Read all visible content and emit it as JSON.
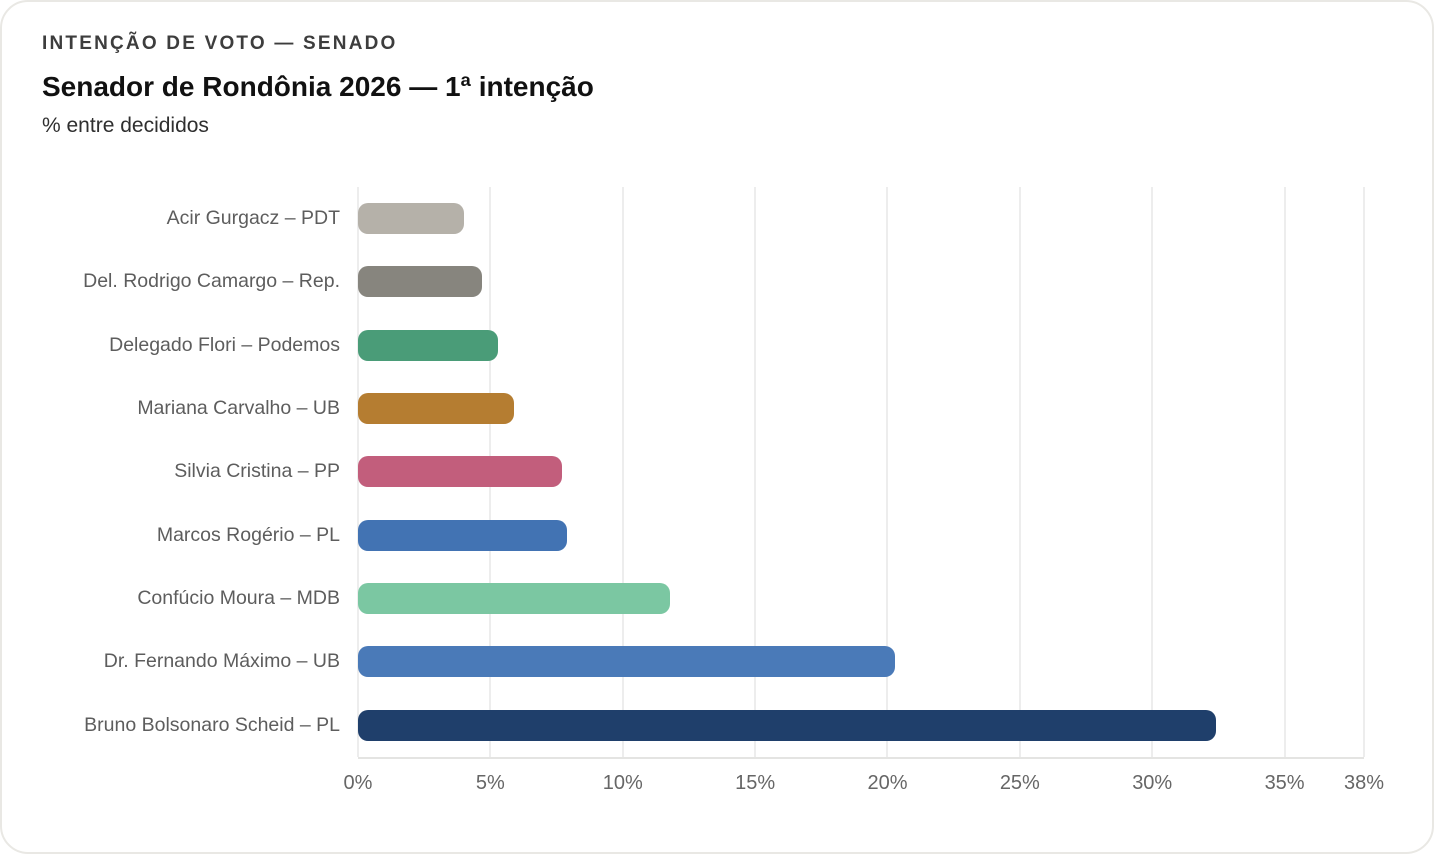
{
  "header": {
    "eyebrow": "INTENÇÃO DE VOTO — SENADO",
    "title": "Senador de Rondônia 2026 — 1ª intenção",
    "subtitle": "% entre decididos"
  },
  "chart_data": {
    "type": "bar",
    "orientation": "horizontal",
    "title": "Senador de Rondônia 2026 — 1ª intenção",
    "subtitle": "% entre decididos",
    "xlabel": "",
    "ylabel": "",
    "xlim": [
      0,
      38
    ],
    "grid": true,
    "categories": [
      "Acir Gurgacz – PDT",
      "Del. Rodrigo Camargo – Rep.",
      "Delegado Flori – Podemos",
      "Mariana Carvalho – UB",
      "Silvia Cristina – PP",
      "Marcos Rogério – PL",
      "Confúcio Moura – MDB",
      "Dr. Fernando Máximo – UB",
      "Bruno Bolsonaro Scheid – PL"
    ],
    "values": [
      4.0,
      4.7,
      5.3,
      5.9,
      7.7,
      7.9,
      11.8,
      20.3,
      32.4
    ],
    "colors": [
      "#b5b1a9",
      "#87857e",
      "#4a9c78",
      "#b57d31",
      "#c25e7c",
      "#4273b3",
      "#7bc7a2",
      "#4a7ab8",
      "#1f3f6b"
    ],
    "x_ticks": [
      {
        "value": 0,
        "label": "0%"
      },
      {
        "value": 5,
        "label": "5%"
      },
      {
        "value": 10,
        "label": "10%"
      },
      {
        "value": 15,
        "label": "15%"
      },
      {
        "value": 20,
        "label": "20%"
      },
      {
        "value": 25,
        "label": "25%"
      },
      {
        "value": 30,
        "label": "30%"
      },
      {
        "value": 35,
        "label": "35%"
      },
      {
        "value": 38,
        "label": "38%"
      }
    ],
    "colors_meta": {
      "gridline": "#ededed",
      "axis_line": "#e4e4e2",
      "label_text": "#5d5d5d",
      "tick_text": "#666666"
    }
  }
}
